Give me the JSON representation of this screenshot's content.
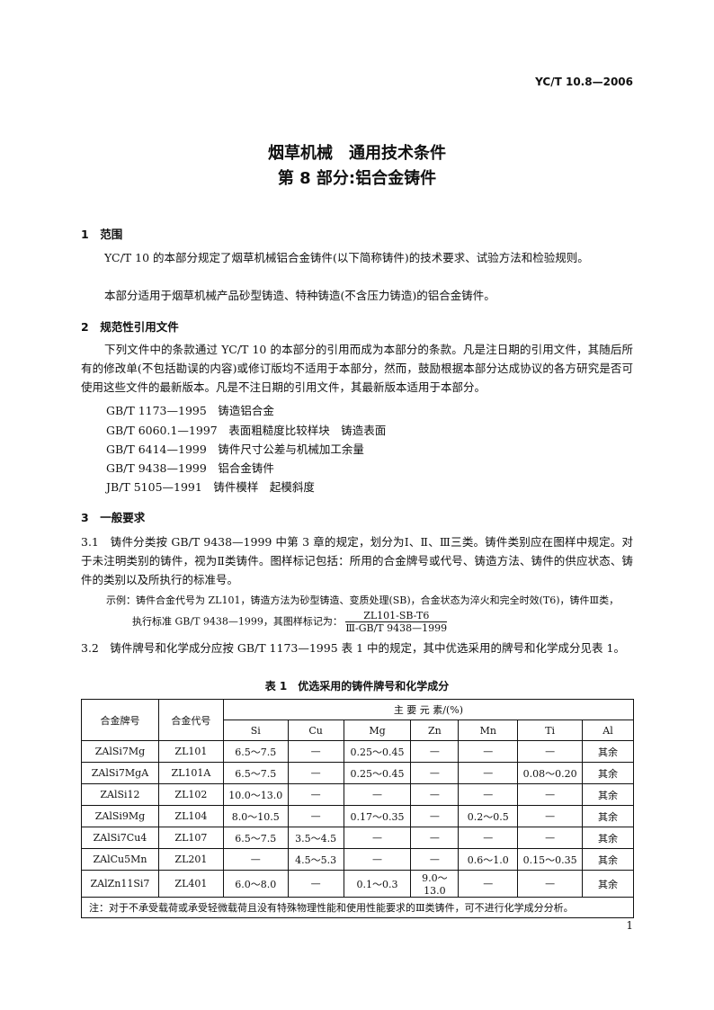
{
  "header": {
    "standard_no": "YC/T 10.8—2006"
  },
  "title": {
    "line1": "烟草机械　通用技术条件",
    "line2": "第 8 部分:铝合金铸件"
  },
  "s1": {
    "heading": "1　范围",
    "p1": "YC/T 10 的本部分规定了烟草机械铝合金铸件(以下简称铸件)的技术要求、试验方法和检验规则。",
    "p2": "本部分适用于烟草机械产品砂型铸造、特种铸造(不含压力铸造)的铝合金铸件。"
  },
  "s2": {
    "heading": "2　规范性引用文件",
    "p1": "下列文件中的条款通过 YC/T 10 的本部分的引用而成为本部分的条款。凡是注日期的引用文件，其随后所有的修改单(不包括勘误的内容)或修订版均不适用于本部分，然而，鼓励根据本部分达成协议的各方研究是否可使用这些文件的最新版本。凡是不注日期的引用文件，其最新版本适用于本部分。",
    "refs": [
      "GB/T 1173—1995　铸造铝合金",
      "GB/T 6060.1—1997　表面粗糙度比较样块　铸造表面",
      "GB/T 6414—1999　铸件尺寸公差与机械加工余量",
      "GB/T 9438—1999　铝合金铸件",
      "JB/T 5105—1991　铸件模样　起模斜度"
    ]
  },
  "s3": {
    "heading": "3　一般要求",
    "p31": "3.1　铸件分类按 GB/T 9438—1999 中第 3 章的规定，划分为Ⅰ、Ⅱ、Ⅲ三类。铸件类别应在图样中规定。对于未注明类别的铸件，视为Ⅱ类铸件。图样标记包括：所用的合金牌号或代号、铸造方法、铸件的供应状态、铸件的类别以及所执行的标准号。",
    "example1": "示例：铸件合金代号为 ZL101，铸造方法为砂型铸造、变质处理(SB)，合金状态为淬火和完全时效(T6)，铸件Ⅲ类，",
    "example2": "执行标准 GB/T 9438—1999，其图样标记为：",
    "mark_num": "ZL101-SB-T6",
    "mark_den": "Ⅲ-GB/T 9438—1999",
    "p32": "3.2　铸件牌号和化学成分应按 GB/T 1173—1995 表 1 中的规定，其中优选采用的牌号和化学成分见表 1。"
  },
  "table": {
    "caption": "表 1　优选采用的铸件牌号和化学成分",
    "col_grade": "合金牌号",
    "col_code": "合金代号",
    "group": "主 要 元 素/(%)",
    "elements": [
      "Si",
      "Cu",
      "Mg",
      "Zn",
      "Mn",
      "Ti",
      "Al"
    ],
    "rows": [
      [
        "ZAlSi7Mg",
        "ZL101",
        "6.5～7.5",
        "—",
        "0.25～0.45",
        "—",
        "—",
        "—",
        "其余"
      ],
      [
        "ZAlSi7MgA",
        "ZL101A",
        "6.5～7.5",
        "—",
        "0.25～0.45",
        "—",
        "—",
        "0.08～0.20",
        "其余"
      ],
      [
        "ZAlSi12",
        "ZL102",
        "10.0～13.0",
        "—",
        "—",
        "—",
        "—",
        "—",
        "其余"
      ],
      [
        "ZAlSi9Mg",
        "ZL104",
        "8.0～10.5",
        "—",
        "0.17～0.35",
        "—",
        "0.2～0.5",
        "—",
        "其余"
      ],
      [
        "ZAlSi7Cu4",
        "ZL107",
        "6.5～7.5",
        "3.5～4.5",
        "—",
        "—",
        "—",
        "—",
        "其余"
      ],
      [
        "ZAlCu5Mn",
        "ZL201",
        "—",
        "4.5～5.3",
        "—",
        "—",
        "0.6～1.0",
        "0.15～0.35",
        "其余"
      ],
      [
        "ZAlZn11Si7",
        "ZL401",
        "6.0～8.0",
        "—",
        "0.1～0.3",
        "9.0～13.0",
        "—",
        "—",
        "其余"
      ]
    ],
    "note": "注：对于不承受载荷或承受轻微载荷且没有特殊物理性能和使用性能要求的Ⅲ类铸件，可不进行化学成分分析。"
  },
  "footer": {
    "page": "1"
  }
}
